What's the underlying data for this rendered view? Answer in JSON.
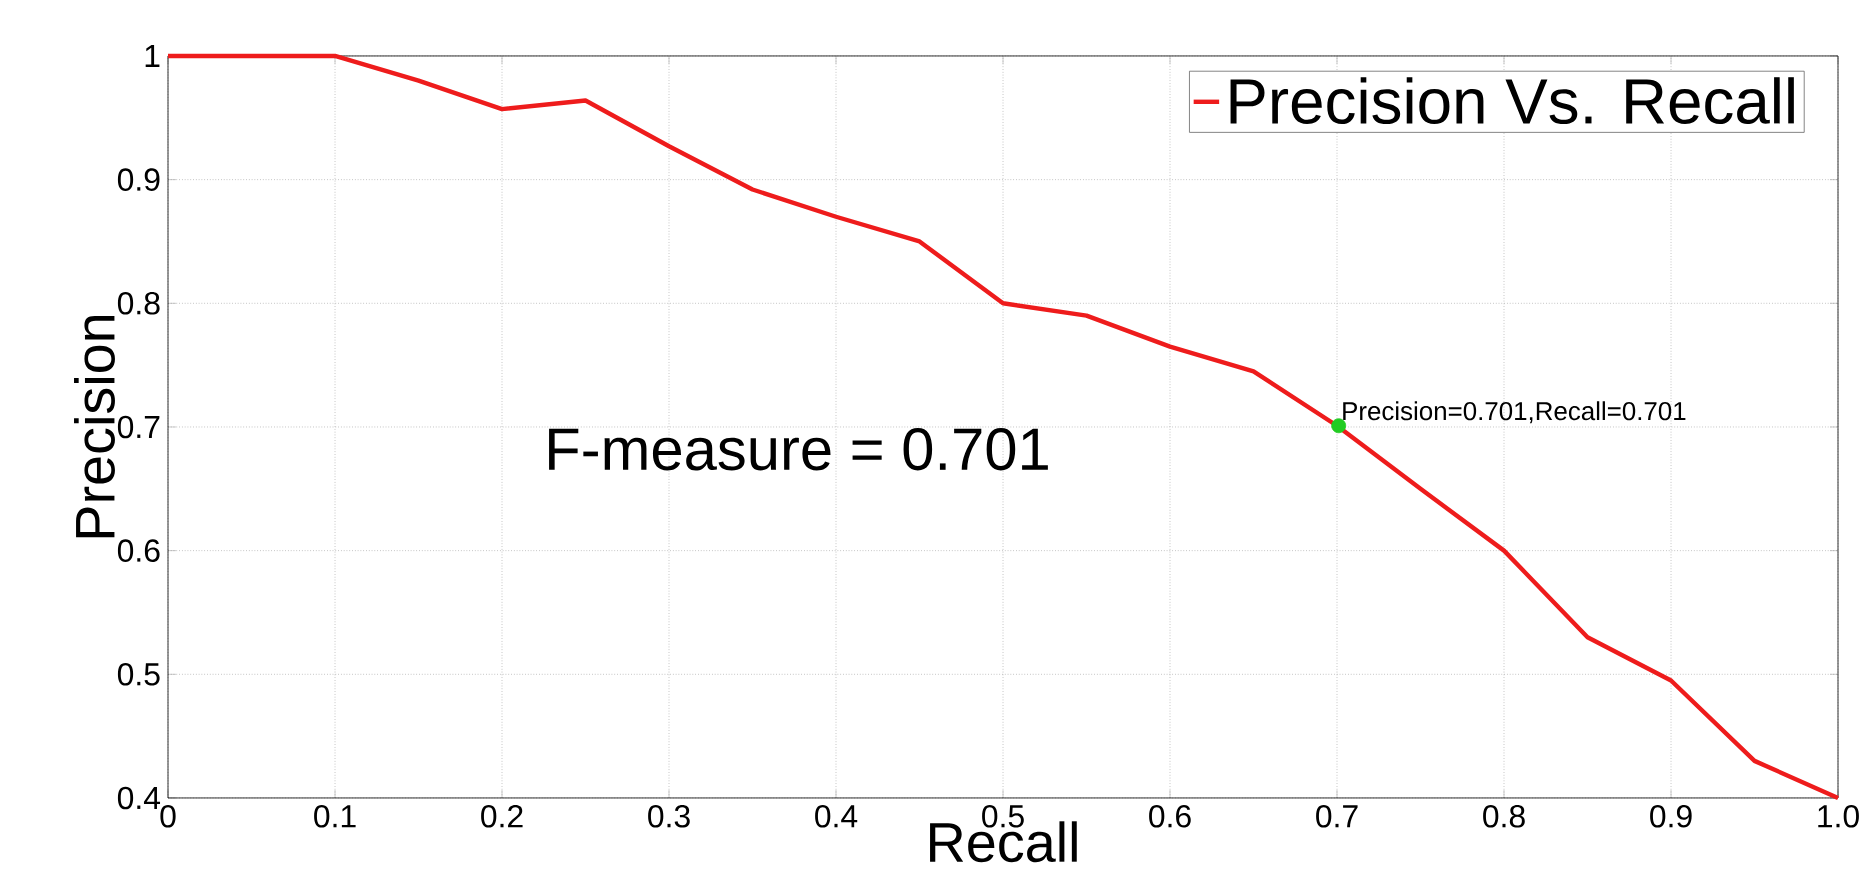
{
  "chart_data": {
    "type": "line",
    "xlabel": "Recall",
    "ylabel": "Precision",
    "x": [
      0,
      0.05,
      0.1,
      0.15,
      0.2,
      0.25,
      0.3,
      0.35,
      0.4,
      0.45,
      0.5,
      0.55,
      0.6,
      0.65,
      0.7,
      0.75,
      0.8,
      0.85,
      0.9,
      0.95,
      1.0
    ],
    "series": [
      {
        "name": "Precision Vs. Recall",
        "color": "#ee1c1c",
        "values": [
          1,
          1,
          1,
          0.98,
          0.957,
          0.964,
          0.927,
          0.892,
          0.87,
          0.85,
          0.8,
          0.79,
          0.765,
          0.745,
          0.701,
          0.65,
          0.6,
          0.53,
          0.495,
          0.43,
          0.4
        ]
      },
      {
        "type": "scatter",
        "x": [
          0.701
        ],
        "color": "#22cc22",
        "marker": "circle",
        "values": [
          0.701
        ]
      }
    ],
    "annotations": [
      "F-measure = 0.701",
      {
        "text": "Precision=0.701,Recall=0.701",
        "x": 0.701,
        "y": 0.701
      }
    ],
    "xlim": [
      0,
      1
    ],
    "ylim": [
      0.4,
      1
    ],
    "xticks": [
      0,
      0.1,
      0.2,
      0.3,
      0.4,
      0.5,
      0.6,
      0.7,
      0.8,
      0.9,
      {
        "value": 1,
        "label": "1.0"
      }
    ],
    "yticks": [
      0.4,
      0.5,
      0.6,
      0.7,
      0.8,
      0.9,
      1
    ],
    "grid": true,
    "legend": "top right",
    "marker": "none",
    "line_style": "solid"
  }
}
